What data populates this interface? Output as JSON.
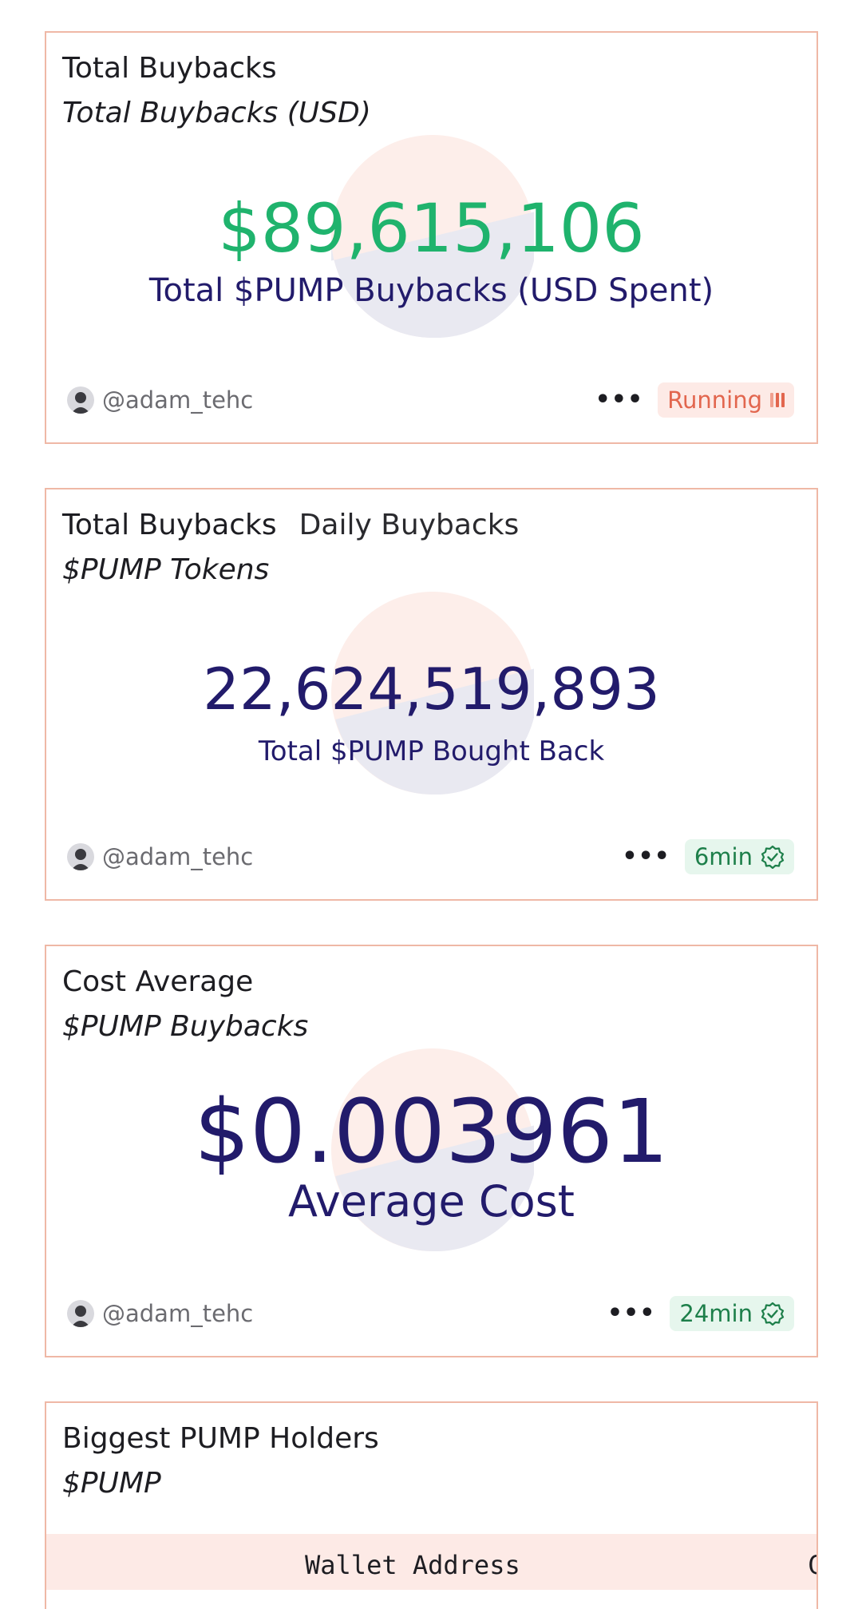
{
  "cards": [
    {
      "title": "Total Buybacks",
      "subtitle": "Total Buybacks (USD)",
      "value": "$89,615,106",
      "value_color": "#1fb36d",
      "label": "Total $PUMP Buybacks (USD Spent)",
      "author": "@adam_tehc",
      "status": "Running",
      "status_kind": "running"
    },
    {
      "title": "Total Buybacks",
      "tab2": "Daily Buybacks",
      "subtitle": "$PUMP Tokens",
      "value": "22,624,519,893",
      "value_color": "#221b6b",
      "label": "Total $PUMP Bought Back",
      "author": "@adam_tehc",
      "status": "6min",
      "status_kind": "fresh"
    },
    {
      "title": "Cost Average",
      "subtitle": "$PUMP Buybacks",
      "value": "$0.003961",
      "value_color": "#221b6b",
      "label": "Average Cost",
      "author": "@adam_tehc",
      "status": "24min",
      "status_kind": "fresh"
    },
    {
      "title": "Biggest PUMP Holders",
      "subtitle": "$PUMP",
      "table_headers": [
        "Wallet Address",
        "C"
      ]
    }
  ],
  "colors": {
    "border": "#efb8a6",
    "accent_green": "#1fb36d",
    "navy": "#221b6b",
    "running": "#e2664e",
    "fresh": "#1d7f4a"
  },
  "icons": [
    "user-avatar-icon",
    "more-dots-icon",
    "running-bars-icon",
    "verified-check-icon"
  ]
}
